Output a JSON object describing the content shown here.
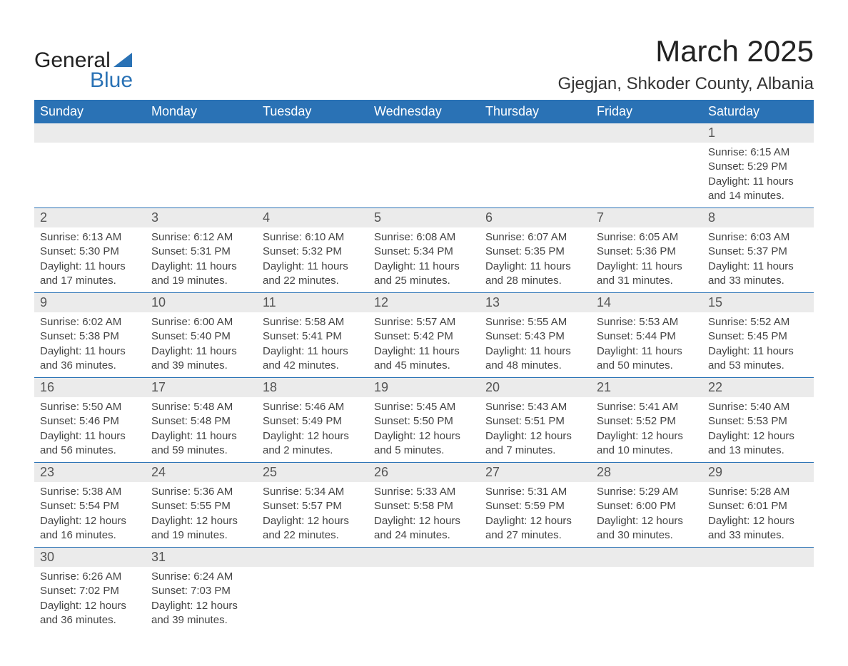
{
  "logo": {
    "text1": "General",
    "text2": "Blue",
    "accent_color": "#2a72b5"
  },
  "title": "March 2025",
  "location": "Gjegjan, Shkoder County, Albania",
  "colors": {
    "header_bg": "#2a72b5",
    "header_text": "#ffffff",
    "daynum_bg": "#ebebeb",
    "row_divider": "#2a72b5",
    "body_text": "#444444"
  },
  "weekdays": [
    "Sunday",
    "Monday",
    "Tuesday",
    "Wednesday",
    "Thursday",
    "Friday",
    "Saturday"
  ],
  "weeks": [
    {
      "days": [
        null,
        null,
        null,
        null,
        null,
        null,
        {
          "n": "1",
          "sunrise": "6:15 AM",
          "sunset": "5:29 PM",
          "daylight": "11 hours and 14 minutes."
        }
      ]
    },
    {
      "days": [
        {
          "n": "2",
          "sunrise": "6:13 AM",
          "sunset": "5:30 PM",
          "daylight": "11 hours and 17 minutes."
        },
        {
          "n": "3",
          "sunrise": "6:12 AM",
          "sunset": "5:31 PM",
          "daylight": "11 hours and 19 minutes."
        },
        {
          "n": "4",
          "sunrise": "6:10 AM",
          "sunset": "5:32 PM",
          "daylight": "11 hours and 22 minutes."
        },
        {
          "n": "5",
          "sunrise": "6:08 AM",
          "sunset": "5:34 PM",
          "daylight": "11 hours and 25 minutes."
        },
        {
          "n": "6",
          "sunrise": "6:07 AM",
          "sunset": "5:35 PM",
          "daylight": "11 hours and 28 minutes."
        },
        {
          "n": "7",
          "sunrise": "6:05 AM",
          "sunset": "5:36 PM",
          "daylight": "11 hours and 31 minutes."
        },
        {
          "n": "8",
          "sunrise": "6:03 AM",
          "sunset": "5:37 PM",
          "daylight": "11 hours and 33 minutes."
        }
      ]
    },
    {
      "days": [
        {
          "n": "9",
          "sunrise": "6:02 AM",
          "sunset": "5:38 PM",
          "daylight": "11 hours and 36 minutes."
        },
        {
          "n": "10",
          "sunrise": "6:00 AM",
          "sunset": "5:40 PM",
          "daylight": "11 hours and 39 minutes."
        },
        {
          "n": "11",
          "sunrise": "5:58 AM",
          "sunset": "5:41 PM",
          "daylight": "11 hours and 42 minutes."
        },
        {
          "n": "12",
          "sunrise": "5:57 AM",
          "sunset": "5:42 PM",
          "daylight": "11 hours and 45 minutes."
        },
        {
          "n": "13",
          "sunrise": "5:55 AM",
          "sunset": "5:43 PM",
          "daylight": "11 hours and 48 minutes."
        },
        {
          "n": "14",
          "sunrise": "5:53 AM",
          "sunset": "5:44 PM",
          "daylight": "11 hours and 50 minutes."
        },
        {
          "n": "15",
          "sunrise": "5:52 AM",
          "sunset": "5:45 PM",
          "daylight": "11 hours and 53 minutes."
        }
      ]
    },
    {
      "days": [
        {
          "n": "16",
          "sunrise": "5:50 AM",
          "sunset": "5:46 PM",
          "daylight": "11 hours and 56 minutes."
        },
        {
          "n": "17",
          "sunrise": "5:48 AM",
          "sunset": "5:48 PM",
          "daylight": "11 hours and 59 minutes."
        },
        {
          "n": "18",
          "sunrise": "5:46 AM",
          "sunset": "5:49 PM",
          "daylight": "12 hours and 2 minutes."
        },
        {
          "n": "19",
          "sunrise": "5:45 AM",
          "sunset": "5:50 PM",
          "daylight": "12 hours and 5 minutes."
        },
        {
          "n": "20",
          "sunrise": "5:43 AM",
          "sunset": "5:51 PM",
          "daylight": "12 hours and 7 minutes."
        },
        {
          "n": "21",
          "sunrise": "5:41 AM",
          "sunset": "5:52 PM",
          "daylight": "12 hours and 10 minutes."
        },
        {
          "n": "22",
          "sunrise": "5:40 AM",
          "sunset": "5:53 PM",
          "daylight": "12 hours and 13 minutes."
        }
      ]
    },
    {
      "days": [
        {
          "n": "23",
          "sunrise": "5:38 AM",
          "sunset": "5:54 PM",
          "daylight": "12 hours and 16 minutes."
        },
        {
          "n": "24",
          "sunrise": "5:36 AM",
          "sunset": "5:55 PM",
          "daylight": "12 hours and 19 minutes."
        },
        {
          "n": "25",
          "sunrise": "5:34 AM",
          "sunset": "5:57 PM",
          "daylight": "12 hours and 22 minutes."
        },
        {
          "n": "26",
          "sunrise": "5:33 AM",
          "sunset": "5:58 PM",
          "daylight": "12 hours and 24 minutes."
        },
        {
          "n": "27",
          "sunrise": "5:31 AM",
          "sunset": "5:59 PM",
          "daylight": "12 hours and 27 minutes."
        },
        {
          "n": "28",
          "sunrise": "5:29 AM",
          "sunset": "6:00 PM",
          "daylight": "12 hours and 30 minutes."
        },
        {
          "n": "29",
          "sunrise": "5:28 AM",
          "sunset": "6:01 PM",
          "daylight": "12 hours and 33 minutes."
        }
      ]
    },
    {
      "days": [
        {
          "n": "30",
          "sunrise": "6:26 AM",
          "sunset": "7:02 PM",
          "daylight": "12 hours and 36 minutes."
        },
        {
          "n": "31",
          "sunrise": "6:24 AM",
          "sunset": "7:03 PM",
          "daylight": "12 hours and 39 minutes."
        },
        null,
        null,
        null,
        null,
        null
      ]
    }
  ],
  "labels": {
    "sunrise": "Sunrise: ",
    "sunset": "Sunset: ",
    "daylight": "Daylight: "
  }
}
